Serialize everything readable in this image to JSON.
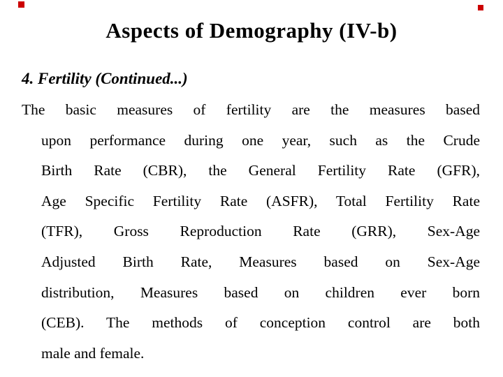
{
  "slide": {
    "title": "Aspects of Demography (IV-b)",
    "heading": "4. Fertility (Continued...)",
    "body_lines": [
      "The basic measures of fertility are the measures based",
      "upon performance during one year, such as the Crude",
      "Birth Rate (CBR), the General Fertility Rate (GFR),",
      "Age Specific Fertility Rate (ASFR), Total Fertility Rate",
      "(TFR), Gross Reproduction Rate (GRR), Sex-Age",
      "Adjusted Birth Rate, Measures based on Sex-Age",
      "distribution, Measures based on children ever born",
      "(CEB). The methods of conception control are both",
      "male and female."
    ],
    "colors": {
      "text": "#000000",
      "background": "#ffffff",
      "corner_mark": "#cc0000"
    }
  }
}
